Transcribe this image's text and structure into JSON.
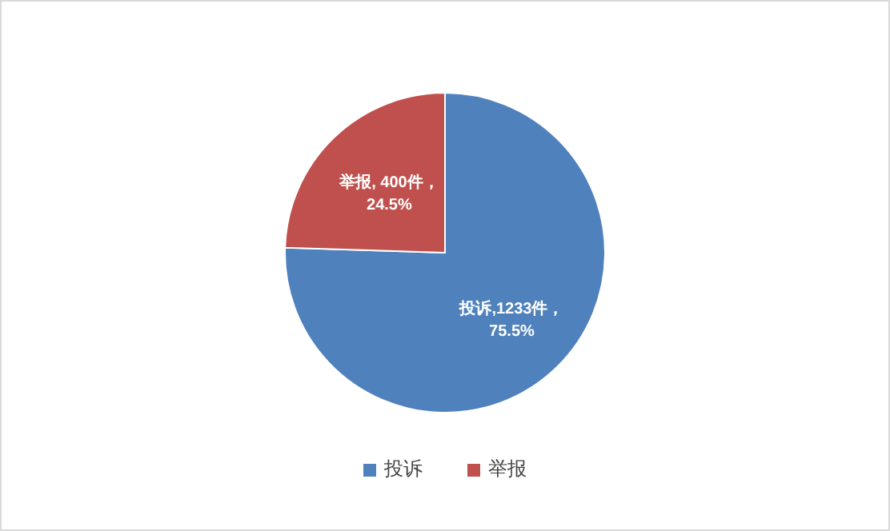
{
  "chart_data": {
    "type": "pie",
    "categories": [
      "投诉",
      "举报"
    ],
    "values": [
      1233,
      400
    ],
    "colors": [
      "#4f81bd",
      "#c0504d"
    ],
    "value_labels": [
      "投诉,1233件，75.5%",
      "举报, 400件，24.5%"
    ],
    "legend": "bottom"
  }
}
